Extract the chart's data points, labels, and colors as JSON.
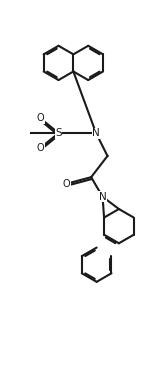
{
  "bg_color": "#ffffff",
  "line_color": "#1a1a1a",
  "line_width": 1.5,
  "fig_width": 1.66,
  "fig_height": 3.87,
  "dpi": 100,
  "xlim": [
    0,
    10
  ],
  "ylim": [
    0,
    23
  ]
}
